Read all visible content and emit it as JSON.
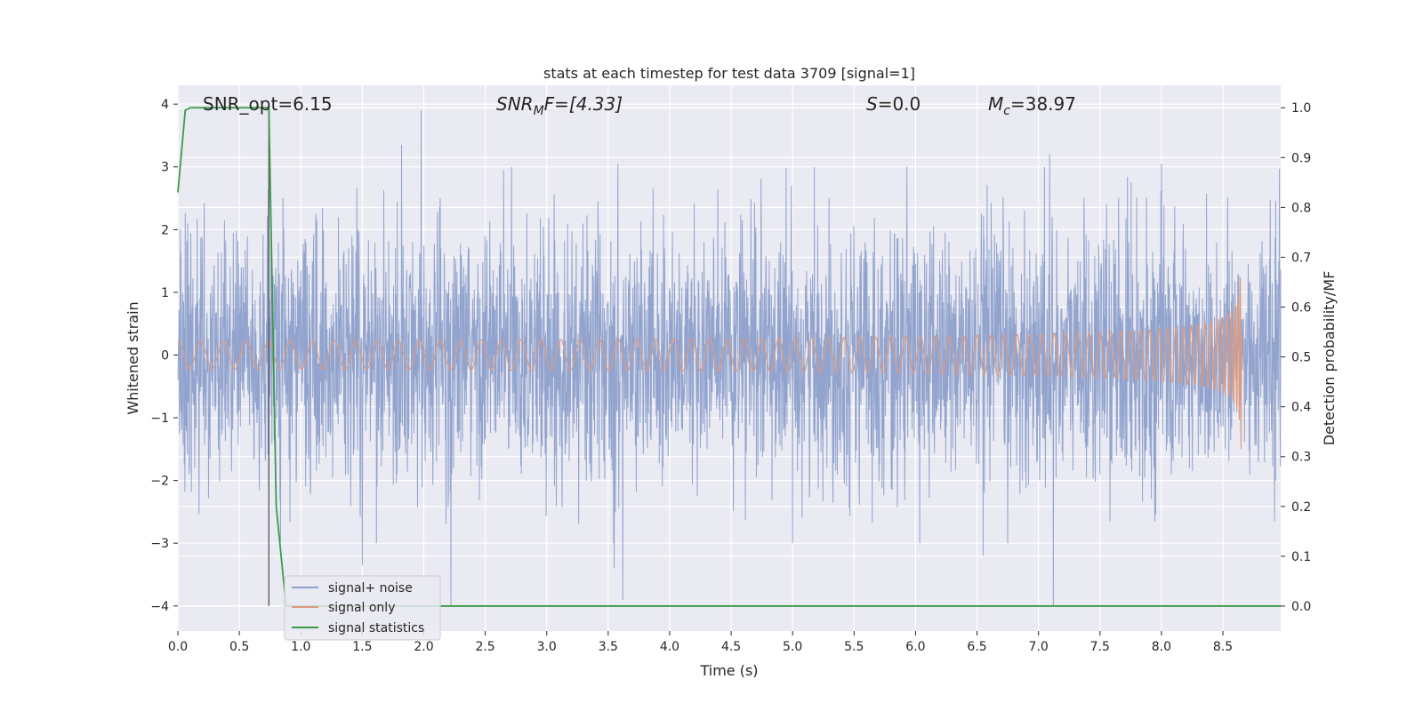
{
  "chart_data": {
    "type": "line",
    "title": "stats at each timestep for test data 3709 [signal=1]",
    "xlabel": "Time (s)",
    "ylabel": "Whitened strain",
    "ylabel_right": "Detection probability/MF",
    "xlim": [
      0,
      8.97
    ],
    "ylim": [
      -4.4,
      4.3
    ],
    "ylim_right": [
      -0.05,
      1.045
    ],
    "xticks": [
      0.0,
      0.5,
      1.0,
      1.5,
      2.0,
      2.5,
      3.0,
      3.5,
      4.0,
      4.5,
      5.0,
      5.5,
      6.0,
      6.5,
      7.0,
      7.5,
      8.0,
      8.5
    ],
    "xtick_labels": [
      "0.0",
      "0.5",
      "1.0",
      "1.5",
      "2.0",
      "2.5",
      "3.0",
      "3.5",
      "4.0",
      "4.5",
      "5.0",
      "5.5",
      "6.0",
      "6.5",
      "7.0",
      "7.5",
      "8.0",
      "8.5"
    ],
    "yticks": [
      -4,
      -3,
      -2,
      -1,
      0,
      1,
      2,
      3,
      4
    ],
    "ytick_labels": [
      "−4",
      "−3",
      "−2",
      "−1",
      "0",
      "1",
      "2",
      "3",
      "4"
    ],
    "yticks_right": [
      0.0,
      0.1,
      0.2,
      0.3,
      0.4,
      0.5,
      0.6,
      0.7,
      0.8,
      0.9,
      1.0
    ],
    "ytick_labels_right": [
      "0.0",
      "0.1",
      "0.2",
      "0.3",
      "0.4",
      "0.5",
      "0.6",
      "0.7",
      "0.8",
      "0.9",
      "1.0"
    ],
    "grid": true,
    "legend_position": "lower-left",
    "annotations": {
      "snr_opt": "SNR_opt=6.15",
      "snr_mf_label": "SNR",
      "snr_mf_sub": "M",
      "snr_mf_value": "F=[4.33]",
      "s_label": "S",
      "s_value": "=0.0",
      "mc_label": "M",
      "mc_sub": "c",
      "mc_value": "=38.97"
    },
    "series": [
      {
        "name": "signal+ noise",
        "color": "#8da0cb",
        "kind": "noise",
        "noise_sigma": 1.0,
        "x_range": [
          0,
          8.97
        ],
        "notable_peaks": [
          {
            "x": 1.82,
            "y": 3.35
          },
          {
            "x": 1.98,
            "y": 3.9
          },
          {
            "x": 2.65,
            "y": 2.95
          },
          {
            "x": 3.58,
            "y": 3.05
          },
          {
            "x": 7.09,
            "y": 3.2
          },
          {
            "x": 8.0,
            "y": 3.05
          },
          {
            "x": 1.5,
            "y": -3.35
          },
          {
            "x": 2.22,
            "y": -4.0
          },
          {
            "x": 3.55,
            "y": -3.4
          },
          {
            "x": 3.62,
            "y": -3.9
          },
          {
            "x": 7.12,
            "y": -4.0
          },
          {
            "x": 6.55,
            "y": -3.2
          }
        ]
      },
      {
        "name": "signal only",
        "color": "#dd9a80",
        "kind": "chirp",
        "merger_time": 8.65,
        "peak_amplitude": 1.5
      },
      {
        "name": "signal statistics",
        "color": "#3a9a4a",
        "axis": "right",
        "x": [
          0.0,
          0.06,
          0.1,
          0.3,
          0.55,
          0.74,
          0.8,
          0.88,
          1.0,
          1.5,
          2.0,
          3.0,
          4.0,
          5.0,
          6.0,
          7.0,
          8.0,
          8.97
        ],
        "y": [
          0.83,
          0.995,
          1.0,
          1.0,
          1.0,
          1.0,
          0.2,
          0.0,
          0.0,
          0.0,
          0.0,
          0.0,
          0.0,
          0.0,
          0.0,
          0.0,
          0.0,
          0.0
        ]
      }
    ],
    "vertical_marker": {
      "x": 0.74,
      "y_from": -4.0,
      "y_to": 4.0,
      "color": "#555555"
    }
  }
}
